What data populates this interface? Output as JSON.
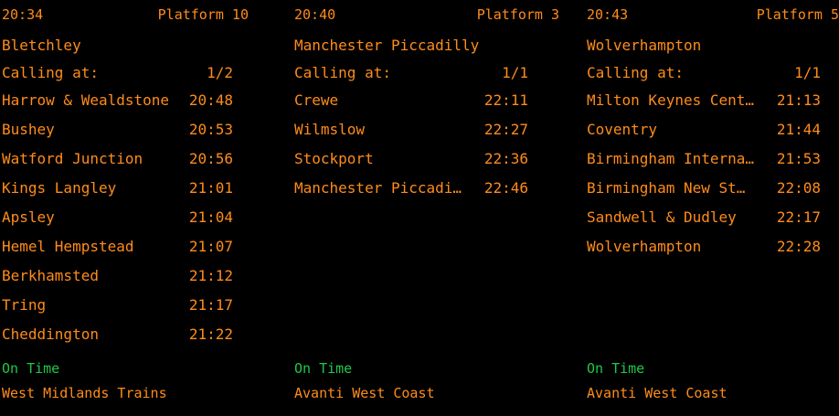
{
  "colors": {
    "background": "#000000",
    "text": "#ff8c1a",
    "status_on_time": "#1fc84a"
  },
  "boards": [
    {
      "time": "20:34",
      "platform": "Platform 10",
      "destination": "Bletchley",
      "calling_label": "Calling at:",
      "page": "1/2",
      "stops": [
        {
          "name": "Harrow & Wealdstone",
          "time": "20:48"
        },
        {
          "name": "Bushey",
          "time": "20:53"
        },
        {
          "name": "Watford Junction",
          "time": "20:56"
        },
        {
          "name": "Kings Langley",
          "time": "21:01"
        },
        {
          "name": "Apsley",
          "time": "21:04"
        },
        {
          "name": "Hemel Hempstead",
          "time": "21:07"
        },
        {
          "name": "Berkhamsted",
          "time": "21:12"
        },
        {
          "name": "Tring",
          "time": "21:17"
        },
        {
          "name": "Cheddington",
          "time": "21:22"
        }
      ],
      "status": "On Time",
      "operator": "West Midlands Trains"
    },
    {
      "time": "20:40",
      "platform": "Platform 3",
      "destination": "Manchester Piccadilly",
      "calling_label": "Calling at:",
      "page": "1/1",
      "stops": [
        {
          "name": "Crewe",
          "time": "22:11"
        },
        {
          "name": "Wilmslow",
          "time": "22:27"
        },
        {
          "name": "Stockport",
          "time": "22:36"
        },
        {
          "name": "Manchester Piccadi…",
          "time": "22:46"
        }
      ],
      "status": "On Time",
      "operator": "Avanti West Coast"
    },
    {
      "time": "20:43",
      "platform": "Platform 5",
      "destination": "Wolverhampton",
      "calling_label": "Calling at:",
      "page": "1/1",
      "stops": [
        {
          "name": "Milton Keynes Cent…",
          "time": "21:13"
        },
        {
          "name": "Coventry",
          "time": "21:44"
        },
        {
          "name": "Birmingham Interna…",
          "time": "21:53"
        },
        {
          "name": "Birmingham New St…",
          "time": "22:08"
        },
        {
          "name": "Sandwell & Dudley",
          "time": "22:17"
        },
        {
          "name": "Wolverhampton",
          "time": "22:28"
        }
      ],
      "status": "On Time",
      "operator": "Avanti West Coast"
    }
  ]
}
